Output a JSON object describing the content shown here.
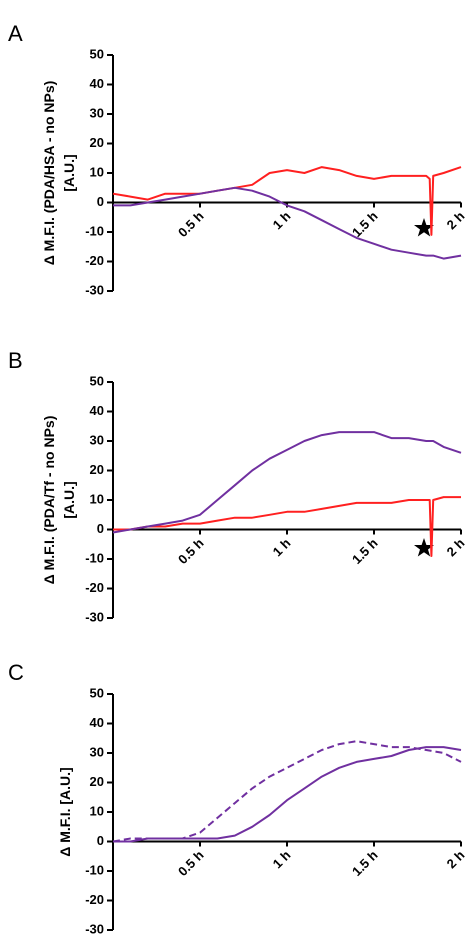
{
  "chart_data": [
    {
      "type": "line",
      "panel": "A",
      "ylabel": [
        "Δ M.F.I. (PDA/HSA - no  NPs)",
        "[A.U.]"
      ],
      "ylim": [
        -30,
        50
      ],
      "yticks": [
        -30,
        -20,
        -10,
        0,
        10,
        20,
        30,
        40,
        50
      ],
      "xlim": [
        0,
        2
      ],
      "xticks": [
        {
          "value": 0.5,
          "label": "0.5 h"
        },
        {
          "value": 1,
          "label": "1 h"
        },
        {
          "value": 1.5,
          "label": "1.5 h"
        },
        {
          "value": 2,
          "label": "2 h"
        }
      ],
      "x": [
        0,
        0.1,
        0.2,
        0.3,
        0.4,
        0.5,
        0.6,
        0.7,
        0.8,
        0.9,
        1.0,
        1.1,
        1.2,
        1.3,
        1.4,
        1.5,
        1.6,
        1.7,
        1.8,
        1.82,
        1.83,
        1.84,
        1.9,
        2.0
      ],
      "series": [
        {
          "color": "#ff2020",
          "values": [
            3,
            2,
            1,
            3,
            3,
            3,
            4,
            5,
            6,
            10,
            11,
            10,
            12,
            11,
            9,
            8,
            9,
            9,
            9,
            8,
            -11,
            9,
            10,
            12
          ]
        },
        {
          "color": "#7030a0",
          "values": [
            -1,
            -1,
            0,
            1,
            2,
            3,
            4,
            5,
            4,
            2,
            -1,
            -3,
            -6,
            -9,
            -12,
            -14,
            -16,
            -17,
            -18,
            -18,
            -18,
            -18,
            -19,
            -18
          ]
        }
      ]
    },
    {
      "type": "line",
      "panel": "B",
      "ylabel": [
        "Δ M.F.I. (PDA/Tf - no  NPs)",
        "[A.U.]"
      ],
      "ylim": [
        -30,
        50
      ],
      "yticks": [
        -30,
        -20,
        -10,
        0,
        10,
        20,
        30,
        40,
        50
      ],
      "xlim": [
        0,
        2
      ],
      "xticks": [
        {
          "value": 0.5,
          "label": "0.5 h"
        },
        {
          "value": 1,
          "label": "1 h"
        },
        {
          "value": 1.5,
          "label": "1.5 h"
        },
        {
          "value": 2,
          "label": "2 h"
        }
      ],
      "x": [
        0,
        0.1,
        0.2,
        0.3,
        0.4,
        0.5,
        0.6,
        0.7,
        0.8,
        0.9,
        1.0,
        1.1,
        1.2,
        1.3,
        1.4,
        1.5,
        1.6,
        1.7,
        1.8,
        1.82,
        1.83,
        1.84,
        1.9,
        2.0
      ],
      "series": [
        {
          "color": "#ff2020",
          "values": [
            0,
            0,
            1,
            1,
            2,
            2,
            3,
            4,
            4,
            5,
            6,
            6,
            7,
            8,
            9,
            9,
            9,
            10,
            10,
            10,
            -9,
            10,
            11,
            11
          ]
        },
        {
          "color": "#7030a0",
          "values": [
            -1,
            0,
            1,
            2,
            3,
            5,
            10,
            15,
            20,
            24,
            27,
            30,
            32,
            33,
            33,
            33,
            31,
            31,
            30,
            30,
            30,
            30,
            28,
            26
          ]
        }
      ]
    },
    {
      "type": "line",
      "panel": "C",
      "ylabel": [
        "Δ M.F.I. [A.U.]"
      ],
      "ylim": [
        -30,
        50
      ],
      "yticks": [
        -30,
        -20,
        -10,
        0,
        10,
        20,
        30,
        40,
        50
      ],
      "xlim": [
        0,
        2
      ],
      "xticks": [
        {
          "value": 0.5,
          "label": "0.5 h"
        },
        {
          "value": 1,
          "label": "1 h"
        },
        {
          "value": 1.5,
          "label": "1.5 h"
        },
        {
          "value": 2,
          "label": "2 h"
        }
      ],
      "x": [
        0,
        0.1,
        0.2,
        0.3,
        0.4,
        0.5,
        0.6,
        0.7,
        0.8,
        0.9,
        1.0,
        1.1,
        1.2,
        1.3,
        1.4,
        1.5,
        1.6,
        1.7,
        1.8,
        1.9,
        2.0
      ],
      "series": [
        {
          "color": "#7030a0",
          "values": [
            0,
            0,
            1,
            1,
            1,
            1,
            1,
            2,
            5,
            9,
            14,
            18,
            22,
            25,
            27,
            28,
            29,
            31,
            32,
            32,
            31
          ]
        },
        {
          "color": "#7030a0",
          "dashed": true,
          "values": [
            0,
            1,
            1,
            1,
            1,
            3,
            8,
            13,
            18,
            22,
            25,
            28,
            31,
            33,
            34,
            33,
            32,
            32,
            31,
            30,
            27
          ]
        }
      ]
    }
  ]
}
